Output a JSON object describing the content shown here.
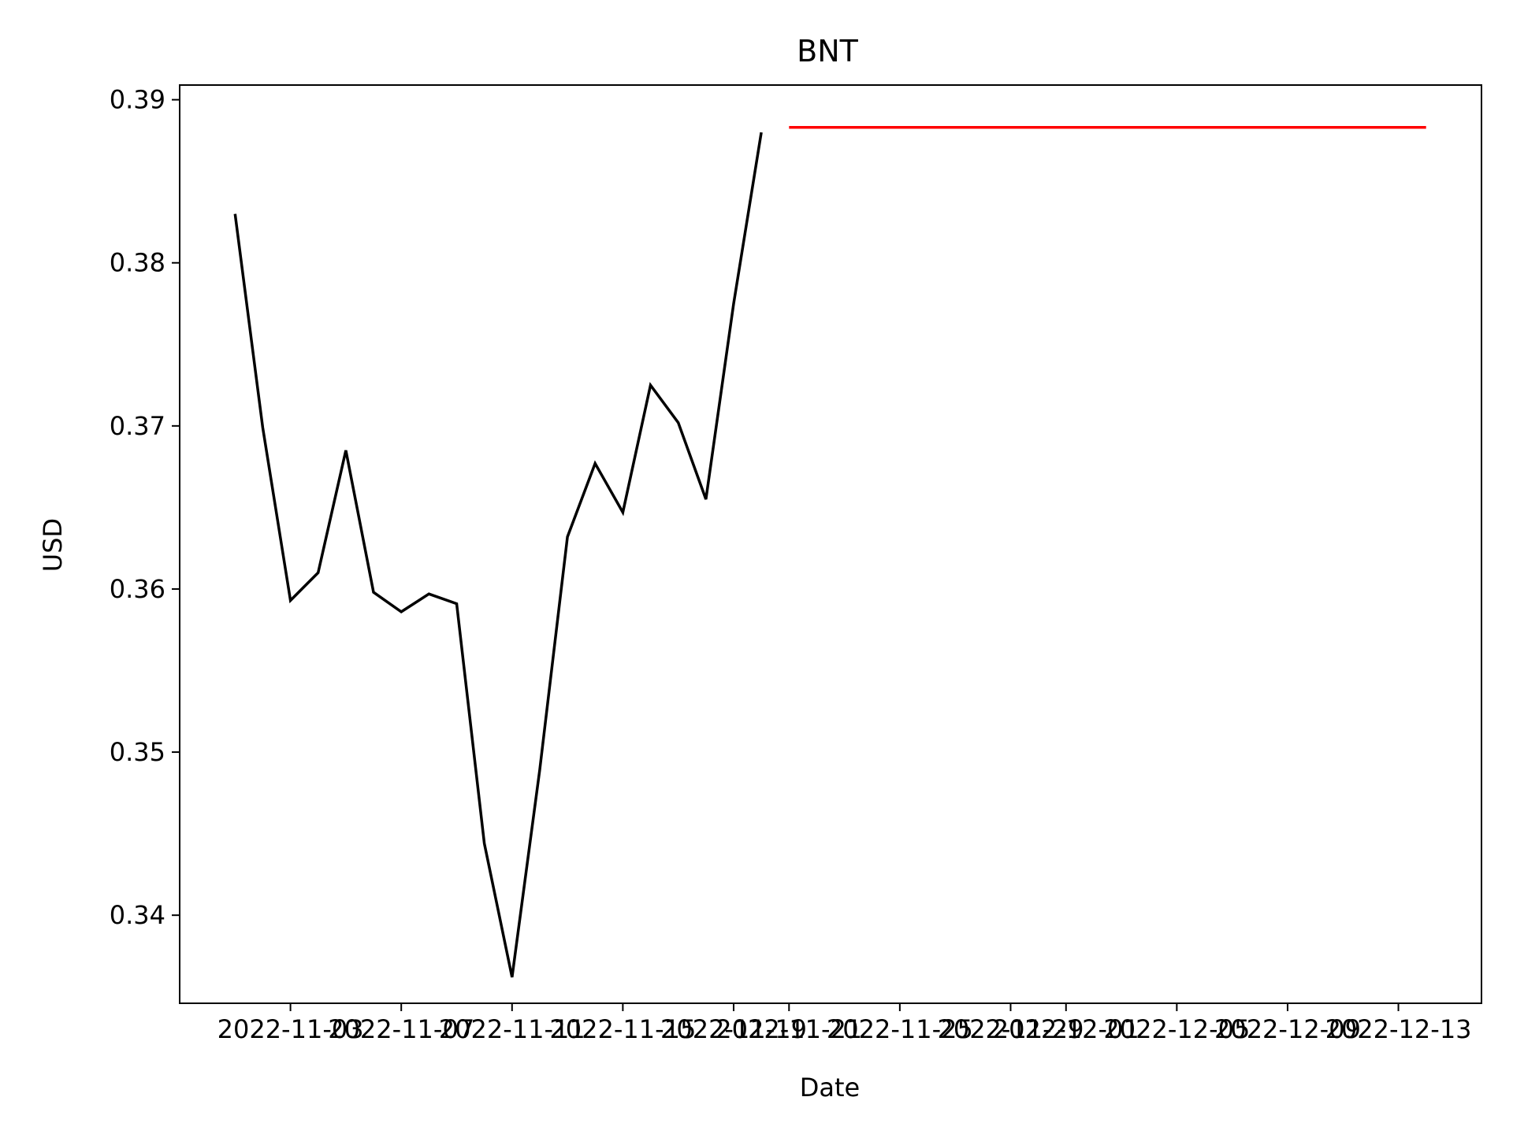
{
  "chart_data": {
    "type": "line",
    "title": "BNT",
    "xlabel": "Date",
    "ylabel": "USD",
    "x_ticks": [
      "2022-11-03",
      "2022-11-07",
      "2022-11-11",
      "2022-11-15",
      "2022-11-19",
      "2022-11-21",
      "2022-11-25",
      "2022-11-29",
      "2022-12-01",
      "2022-12-05",
      "2022-12-09",
      "2022-12-13"
    ],
    "xlim": [
      "2022-10-30",
      "2022-12-16"
    ],
    "y_ticks": [
      "0.34",
      "0.35",
      "0.36",
      "0.37",
      "0.38",
      "0.39"
    ],
    "ylim": [
      0.3346,
      0.3909
    ],
    "grid": false,
    "series": [
      {
        "color": "#000000",
        "points": [
          {
            "x": "2022-11-01",
            "y": 0.383
          },
          {
            "x": "2022-11-02",
            "y": 0.3699
          },
          {
            "x": "2022-11-03",
            "y": 0.3593
          },
          {
            "x": "2022-11-04",
            "y": 0.361
          },
          {
            "x": "2022-11-05",
            "y": 0.3685
          },
          {
            "x": "2022-11-06",
            "y": 0.3598
          },
          {
            "x": "2022-11-07",
            "y": 0.3586
          },
          {
            "x": "2022-11-08",
            "y": 0.3597
          },
          {
            "x": "2022-11-09",
            "y": 0.3591
          },
          {
            "x": "2022-11-10",
            "y": 0.3444
          },
          {
            "x": "2022-11-11",
            "y": 0.3362
          },
          {
            "x": "2022-11-12",
            "y": 0.3489
          },
          {
            "x": "2022-11-13",
            "y": 0.3632
          },
          {
            "x": "2022-11-14",
            "y": 0.3677
          },
          {
            "x": "2022-11-15",
            "y": 0.3647
          },
          {
            "x": "2022-11-16",
            "y": 0.3725
          },
          {
            "x": "2022-11-17",
            "y": 0.3702
          },
          {
            "x": "2022-11-18",
            "y": 0.3655
          },
          {
            "x": "2022-11-19",
            "y": 0.3775
          },
          {
            "x": "2022-11-20",
            "y": 0.388
          }
        ]
      },
      {
        "color": "#ff0000",
        "points": [
          {
            "x": "2022-11-21",
            "y": 0.3883
          },
          {
            "x": "2022-12-14",
            "y": 0.3883
          }
        ]
      }
    ]
  }
}
